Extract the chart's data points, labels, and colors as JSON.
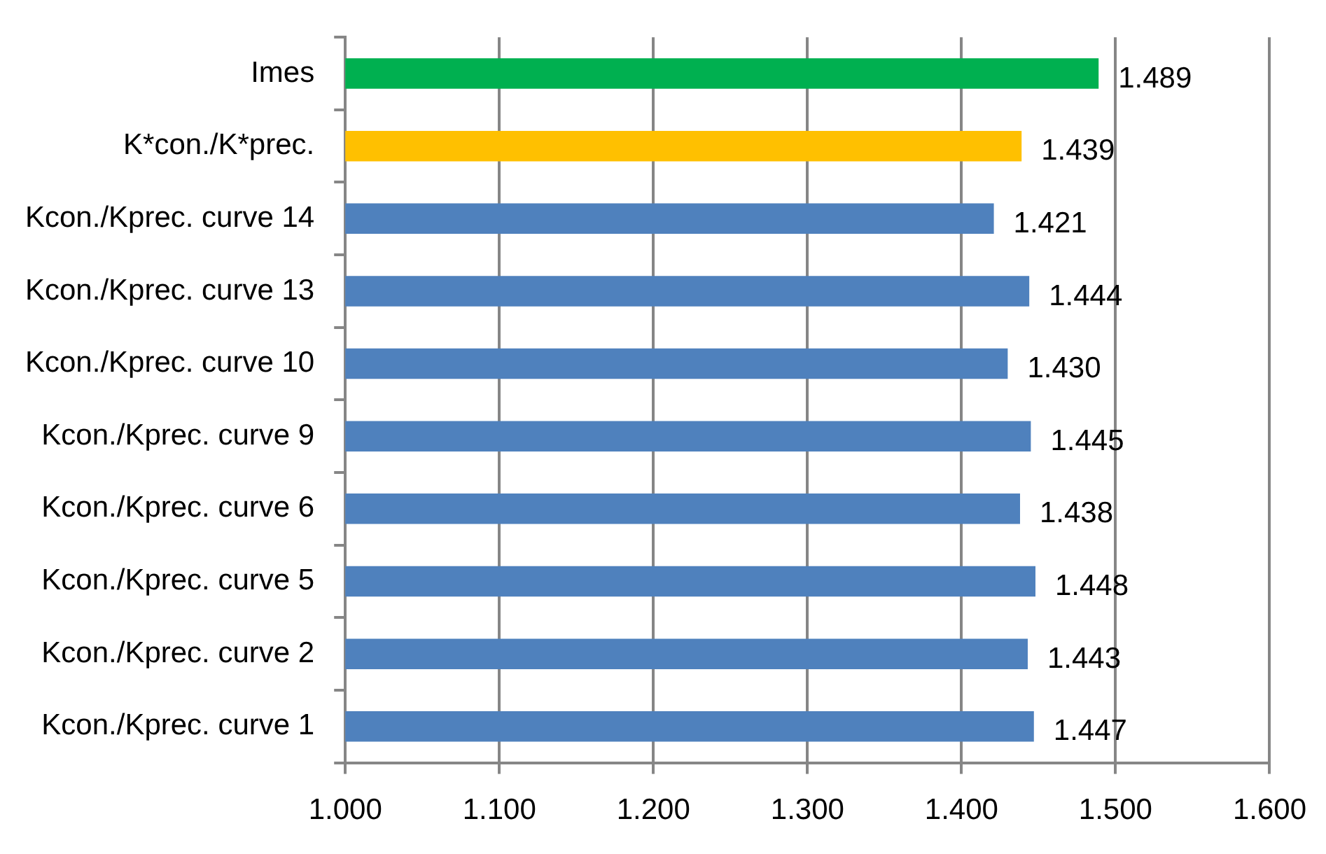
{
  "chart_data": {
    "type": "bar",
    "orientation": "horizontal",
    "categories": [
      "Imes",
      "K*con./K*prec.",
      "Kcon./Kprec. curve 14",
      "Kcon./Kprec. curve 13",
      "Kcon./Kprec. curve 10",
      "Kcon./Kprec. curve 9",
      "Kcon./Kprec. curve 6",
      "Kcon./Kprec. curve 5",
      "Kcon./Kprec. curve 2",
      "Kcon./Kprec. curve 1"
    ],
    "values": [
      1.489,
      1.439,
      1.421,
      1.444,
      1.43,
      1.445,
      1.438,
      1.448,
      1.443,
      1.447
    ],
    "colors": [
      "#00b050",
      "#ffc000",
      "#4f81bd",
      "#4f81bd",
      "#4f81bd",
      "#4f81bd",
      "#4f81bd",
      "#4f81bd",
      "#4f81bd",
      "#4f81bd"
    ],
    "value_labels": [
      "1.489",
      "1.439",
      "1.421",
      "1.444",
      "1.430",
      "1.445",
      "1.438",
      "1.448",
      "1.443",
      "1.447"
    ],
    "xlim": [
      1,
      1.6
    ],
    "xticks": [
      {
        "value": 1,
        "label": "1.000"
      },
      {
        "value": 1.1,
        "label": "1.100"
      },
      {
        "value": 1.2,
        "label": "1.200"
      },
      {
        "value": 1.3,
        "label": "1.300"
      },
      {
        "value": 1.4,
        "label": "1.400"
      },
      {
        "value": 1.5,
        "label": "1.500"
      },
      {
        "value": 1.6,
        "label": "1.600"
      }
    ],
    "grid": "x",
    "legend": false
  }
}
